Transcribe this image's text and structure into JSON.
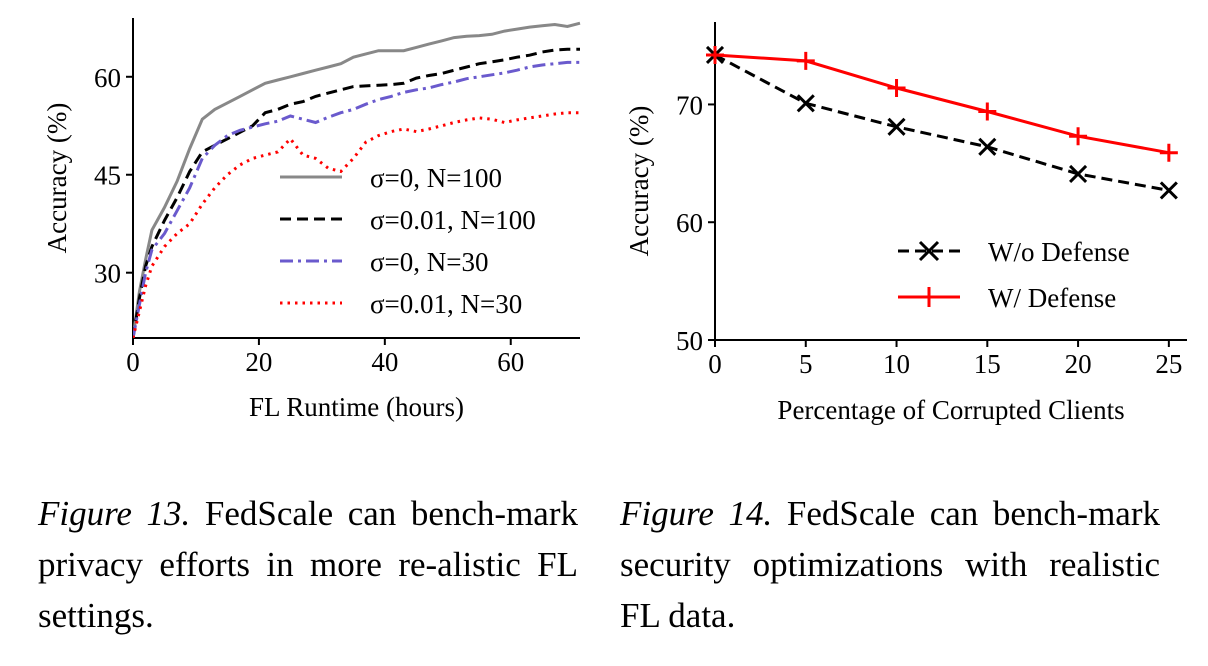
{
  "chart_data": [
    {
      "type": "line",
      "xlabel": "FL Runtime (hours)",
      "ylabel": "Accuracy (%)",
      "xlim": [
        0,
        71
      ],
      "ylim": [
        20,
        69
      ],
      "xticks": [
        0,
        20,
        40,
        60
      ],
      "yticks": [
        30,
        45,
        60
      ],
      "grid": false,
      "legend_position": "lower-right",
      "series": [
        {
          "name": "σ=0, N=100",
          "color": "#888888",
          "style": "solid",
          "x": [
            0,
            1,
            2,
            3,
            5,
            7,
            9,
            11,
            13,
            15,
            17,
            19,
            21,
            23,
            25,
            27,
            29,
            31,
            33,
            35,
            37,
            39,
            41,
            43,
            45,
            47,
            49,
            51,
            53,
            55,
            57,
            59,
            61,
            63,
            65,
            67,
            69,
            71
          ],
          "y": [
            20,
            27,
            32,
            36.5,
            40,
            44,
            49,
            53.5,
            55,
            56,
            57,
            58,
            59,
            59.5,
            60,
            60.5,
            61,
            61.5,
            62,
            63,
            63.5,
            64,
            64,
            64,
            64.5,
            65,
            65.5,
            66,
            66.2,
            66.3,
            66.5,
            67,
            67.3,
            67.6,
            67.8,
            68,
            67.7,
            68.2
          ]
        },
        {
          "name": "σ=0.01, N=100",
          "color": "#000000",
          "style": "dashed",
          "x": [
            0,
            1,
            2,
            3,
            5,
            7,
            9,
            11,
            13,
            15,
            17,
            19,
            21,
            23,
            25,
            27,
            29,
            31,
            33,
            35,
            37,
            39,
            41,
            43,
            45,
            47,
            49,
            51,
            53,
            55,
            57,
            59,
            61,
            63,
            65,
            67,
            69,
            71
          ],
          "y": [
            20,
            26,
            31,
            34,
            38,
            41.5,
            45.5,
            48.5,
            49.5,
            50.5,
            51.5,
            52.5,
            54.5,
            55,
            55.8,
            56.2,
            57,
            57.5,
            58,
            58.5,
            58.6,
            58.7,
            58.8,
            59,
            59.8,
            60.2,
            60.5,
            61,
            61.5,
            62,
            62.3,
            62.6,
            63,
            63.3,
            63.8,
            64.1,
            64.2,
            64.2
          ]
        },
        {
          "name": "σ=0, N=30",
          "color": "#6a5acd",
          "style": "dashdot",
          "x": [
            0,
            1,
            2,
            3,
            5,
            7,
            9,
            11,
            13,
            15,
            17,
            19,
            21,
            23,
            25,
            27,
            29,
            31,
            33,
            35,
            37,
            39,
            41,
            43,
            45,
            47,
            49,
            51,
            53,
            55,
            57,
            59,
            61,
            63,
            65,
            67,
            69,
            71
          ],
          "y": [
            20,
            25,
            30,
            33.5,
            36,
            39.5,
            43,
            47.5,
            49.5,
            51,
            51.8,
            52.3,
            52.8,
            53.2,
            54,
            53.5,
            53,
            53.8,
            54.5,
            55,
            55.8,
            56.5,
            57,
            57.6,
            58,
            58.3,
            58.8,
            59.2,
            59.7,
            60,
            60.3,
            60.6,
            61,
            61.5,
            61.8,
            62,
            62.2,
            62.2
          ]
        },
        {
          "name": "σ=0.01, N=30",
          "color": "#ff0000",
          "style": "dotted",
          "x": [
            0,
            1,
            2,
            3,
            5,
            7,
            9,
            11,
            13,
            15,
            17,
            19,
            21,
            23,
            25,
            27,
            29,
            31,
            33,
            35,
            37,
            39,
            41,
            43,
            45,
            47,
            49,
            51,
            53,
            55,
            57,
            59,
            61,
            63,
            65,
            67,
            69,
            71
          ],
          "y": [
            20,
            24,
            28,
            31,
            34,
            36,
            37.5,
            40.5,
            43,
            45,
            46.5,
            47.5,
            48,
            48.5,
            50.5,
            48,
            47.5,
            46,
            45.5,
            47.5,
            50,
            51,
            51.6,
            52,
            51.6,
            52,
            52.5,
            53,
            53.4,
            53.7,
            53.5,
            53,
            53.4,
            53.7,
            54,
            54.3,
            54.5,
            54.5
          ]
        }
      ]
    },
    {
      "type": "line",
      "xlabel": "Percentage of Corrupted Clients",
      "ylabel": "Accuracy (%)",
      "xlim": [
        0,
        26
      ],
      "ylim": [
        50,
        77
      ],
      "xticks": [
        0,
        5,
        10,
        15,
        20,
        25
      ],
      "yticks": [
        50,
        60,
        70
      ],
      "grid": false,
      "legend_position": "lower-right",
      "series": [
        {
          "name": "W/o Defense",
          "color": "#000000",
          "style": "dashed",
          "marker": "x",
          "x": [
            0,
            5,
            10,
            15,
            20,
            25
          ],
          "y": [
            74.2,
            70.1,
            68.1,
            66.4,
            64.1,
            62.7
          ]
        },
        {
          "name": "W/ Defense",
          "color": "#ff0000",
          "style": "solid",
          "marker": "+",
          "x": [
            0,
            5,
            10,
            15,
            20,
            25
          ],
          "y": [
            74.2,
            73.7,
            71.4,
            69.4,
            67.3,
            65.9
          ]
        }
      ]
    }
  ],
  "captions": {
    "fig13_label": "Figure 13.",
    "fig13_text": "FedScale can bench-mark privacy efforts in more re-alistic FL settings.",
    "fig14_label": "Figure 14.",
    "fig14_text": "FedScale can bench-mark security optimizations with realistic FL data."
  }
}
